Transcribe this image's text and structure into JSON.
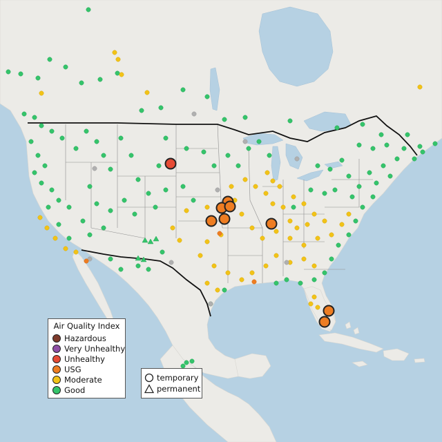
{
  "legend": {
    "title": "Air Quality Index",
    "items": [
      {
        "label": "Hazardous",
        "color": "#7e3b2c"
      },
      {
        "label": "Very Unhealthy",
        "color": "#8f4fa6"
      },
      {
        "label": "Unhealthy",
        "color": "#e64b35"
      },
      {
        "label": "USG",
        "color": "#ee7d22"
      },
      {
        "label": "Moderate",
        "color": "#f2c318"
      },
      {
        "label": "Good",
        "color": "#35c46b"
      }
    ]
  },
  "shape_legend": {
    "items": [
      {
        "label": "temporary",
        "shape": "circle"
      },
      {
        "label": "permanent",
        "shape": "triangle"
      }
    ]
  },
  "marker_colors": {
    "good": "#35c46b",
    "moderate": "#f2c318",
    "usg": "#ee7d22",
    "unhealthy": "#e64b35",
    "no_data": "#b0b0b0"
  }
}
